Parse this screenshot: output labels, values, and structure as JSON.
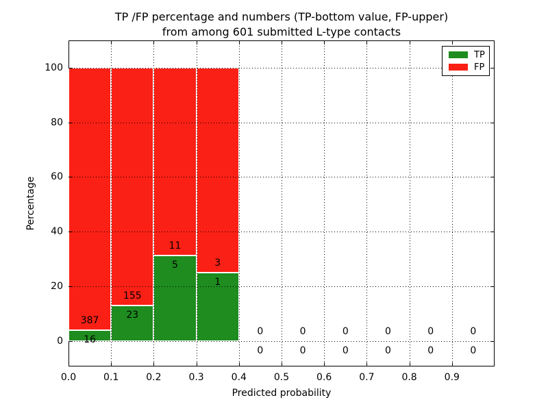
{
  "title": {
    "line1": "TP /FP percentage and numbers (TP-bottom value, FP-upper)",
    "line2": "from among 601 submitted L-type contacts"
  },
  "axes": {
    "xlabel": "Predicted probability",
    "ylabel": "Percentage",
    "x_tick_labels": [
      "0.0",
      "0.1",
      "0.2",
      "0.3",
      "0.4",
      "0.5",
      "0.6",
      "0.7",
      "0.8",
      "0.9"
    ],
    "x_tick_values": [
      0.0,
      0.1,
      0.2,
      0.3,
      0.4,
      0.5,
      0.6,
      0.7,
      0.8,
      0.9
    ],
    "x_grid_values": [
      0.1,
      0.2,
      0.3,
      0.4,
      0.5,
      0.6,
      0.7,
      0.8,
      0.9
    ],
    "y_tick_labels": [
      "0",
      "20",
      "40",
      "60",
      "80",
      "100"
    ],
    "y_tick_values": [
      0,
      20,
      40,
      60,
      80,
      100
    ],
    "xlim": [
      0.0,
      1.0
    ],
    "ylim": [
      -9.3,
      110
    ],
    "grid": true,
    "grid_style": "dotted"
  },
  "legend": {
    "position": "upper right",
    "items": [
      {
        "label": "TP",
        "color": "#1e8c1e"
      },
      {
        "label": "FP",
        "color": "#fb2015"
      }
    ]
  },
  "colors": {
    "tp_green": "#1e8c1e",
    "fp_red": "#fb2015",
    "bar_edge": "#ffffff",
    "axis": "#000000"
  },
  "chart_data": {
    "type": "bar",
    "stacked": true,
    "title": "TP /FP percentage and numbers (TP-bottom value, FP-upper) from among 601 submitted L-type contacts",
    "xlabel": "Predicted probability",
    "ylabel": "Percentage",
    "xlim": [
      0.0,
      1.0
    ],
    "ylim": [
      -9.3,
      110
    ],
    "legend_position": "upper right",
    "grid": true,
    "total_contacts": 601,
    "bin_edges": [
      0.0,
      0.1,
      0.2,
      0.3,
      0.4,
      0.5,
      0.6,
      0.7,
      0.8,
      0.9,
      1.0
    ],
    "categories": [
      "0.0-0.1",
      "0.1-0.2",
      "0.2-0.3",
      "0.3-0.4",
      "0.4-0.5",
      "0.5-0.6",
      "0.6-0.7",
      "0.7-0.8",
      "0.8-0.9",
      "0.9-1.0"
    ],
    "series": [
      {
        "name": "TP",
        "color": "#1e8c1e",
        "counts": [
          16,
          23,
          5,
          1,
          0,
          0,
          0,
          0,
          0,
          0
        ],
        "percent": [
          3.97,
          12.92,
          31.25,
          25.0,
          0,
          0,
          0,
          0,
          0,
          0
        ]
      },
      {
        "name": "FP",
        "color": "#fb2015",
        "counts": [
          387,
          155,
          11,
          3,
          0,
          0,
          0,
          0,
          0,
          0
        ],
        "percent": [
          96.03,
          87.08,
          68.75,
          75.0,
          0,
          0,
          0,
          0,
          0,
          0
        ]
      }
    ]
  }
}
